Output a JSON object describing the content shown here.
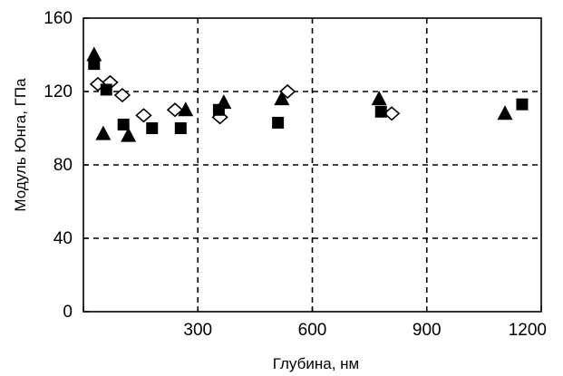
{
  "chart_data": {
    "type": "scatter",
    "title": "",
    "xlabel": "Глубина, нм",
    "ylabel": "Модуль Юнга, ГПа",
    "xlim": [
      0,
      1200
    ],
    "ylim": [
      0,
      160
    ],
    "xticks": [
      0,
      300,
      600,
      900,
      1200
    ],
    "yticks": [
      0,
      40,
      80,
      120,
      160
    ],
    "x_tick_labels": [
      "300",
      "600",
      "900",
      "1200"
    ],
    "y_tick_labels": [
      "0",
      "40",
      "80",
      "120",
      "160"
    ],
    "grid": "dashed",
    "legend": "none",
    "series": [
      {
        "marker": "filled-square",
        "color": "#000000",
        "points": [
          {
            "x": 28,
            "y": 135
          },
          {
            "x": 60,
            "y": 121
          },
          {
            "x": 105,
            "y": 102
          },
          {
            "x": 180,
            "y": 100
          },
          {
            "x": 255,
            "y": 100
          },
          {
            "x": 355,
            "y": 110
          },
          {
            "x": 510,
            "y": 103
          },
          {
            "x": 780,
            "y": 109
          },
          {
            "x": 1150,
            "y": 113
          }
        ]
      },
      {
        "marker": "filled-triangle",
        "color": "#000000",
        "points": [
          {
            "x": 28,
            "y": 140
          },
          {
            "x": 52,
            "y": 97
          },
          {
            "x": 118,
            "y": 96
          },
          {
            "x": 268,
            "y": 110
          },
          {
            "x": 368,
            "y": 114
          },
          {
            "x": 520,
            "y": 116
          },
          {
            "x": 775,
            "y": 116
          },
          {
            "x": 1105,
            "y": 108
          }
        ]
      },
      {
        "marker": "open-diamond",
        "color": "#000000",
        "points": [
          {
            "x": 38,
            "y": 124
          },
          {
            "x": 70,
            "y": 125
          },
          {
            "x": 102,
            "y": 118
          },
          {
            "x": 158,
            "y": 107
          },
          {
            "x": 240,
            "y": 110
          },
          {
            "x": 358,
            "y": 106
          },
          {
            "x": 535,
            "y": 120
          },
          {
            "x": 808,
            "y": 108
          }
        ]
      }
    ]
  }
}
